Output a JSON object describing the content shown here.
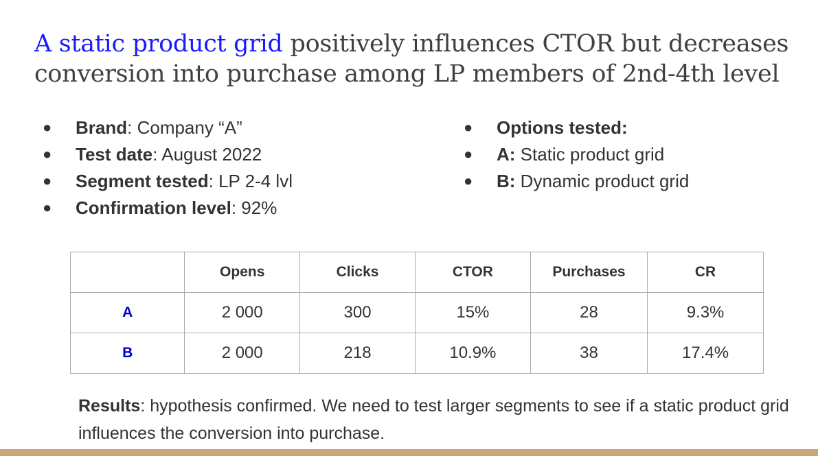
{
  "title": {
    "highlight": "A static product grid",
    "rest": " positively influences CTOR but decreases conversion into purchase among LP members of 2nd-4th level"
  },
  "bullets_left": [
    {
      "label": "Brand",
      "sep": ": ",
      "value": "Company “A”"
    },
    {
      "label": "Test date",
      "sep": ": ",
      "value": "August 2022"
    },
    {
      "label": "Segment tested",
      "sep": ": ",
      "value": "LP 2-4 lvl"
    },
    {
      "label": "Confirmation level",
      "sep": ": ",
      "value": "92%"
    }
  ],
  "bullets_right": [
    {
      "label": "Options tested:",
      "sep": "",
      "value": ""
    },
    {
      "label": "A:",
      "sep": " ",
      "value": "Static product grid"
    },
    {
      "label": "B:",
      "sep": " ",
      "value": "Dynamic product grid"
    }
  ],
  "bullet_glyph": "●",
  "table": {
    "headers": [
      "",
      "Opens",
      "Clicks",
      "CTOR",
      "Purchases",
      "CR"
    ],
    "rows": [
      {
        "label": "A",
        "values": [
          "2 000",
          "300",
          "15%",
          "28",
          "9.3%"
        ]
      },
      {
        "label": "B",
        "values": [
          "2 000",
          "218",
          "10.9%",
          "38",
          "17.4%"
        ]
      }
    ]
  },
  "results": {
    "label": "Results",
    "text": ": hypothesis confirmed. We need to test larger segments to see if a static product grid influences the conversion into purchase."
  },
  "colors": {
    "title_highlight": "#1a1aff",
    "row_label": "#0000cc",
    "footer_bar": "#c9a67a"
  }
}
